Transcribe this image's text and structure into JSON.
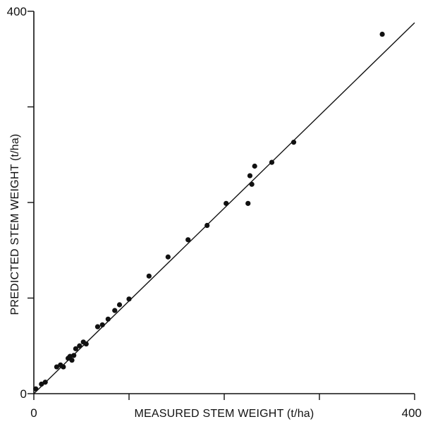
{
  "chart_data": {
    "type": "scatter",
    "xlabel": "MEASURED STEM WEIGHT  (t/ha)",
    "ylabel": "PREDICTED STEM WEIGHT  (t/ha)",
    "xlim": [
      0,
      400
    ],
    "ylim": [
      0,
      400
    ],
    "x_tick_values": [
      0,
      100,
      200,
      300,
      400
    ],
    "y_tick_values": [
      0,
      100,
      200,
      300,
      400
    ],
    "x_tick_labels": [
      "0",
      "",
      "",
      "",
      "400"
    ],
    "y_tick_labels": [
      "0",
      "",
      "",
      "",
      "400"
    ],
    "grid": false,
    "legend": "none",
    "series": [
      {
        "values_x": [
          2,
          8,
          12,
          24,
          28,
          31,
          36,
          38,
          40,
          42,
          44,
          48,
          52,
          55,
          67,
          72,
          78,
          85,
          90,
          100,
          121,
          141,
          162,
          182,
          202,
          227,
          225,
          229,
          232,
          250,
          273,
          366
        ],
        "values_y": [
          5,
          10,
          12,
          28,
          30,
          28,
          37,
          39,
          35,
          40,
          47,
          50,
          54,
          52,
          70,
          72,
          78,
          87,
          93,
          99,
          123,
          143,
          161,
          176,
          199,
          228,
          199,
          219,
          238,
          242,
          263,
          376
        ],
        "color": "#111111"
      }
    ],
    "fit_line": {
      "x": [
        0,
        400
      ],
      "y": [
        0,
        388
      ]
    }
  }
}
